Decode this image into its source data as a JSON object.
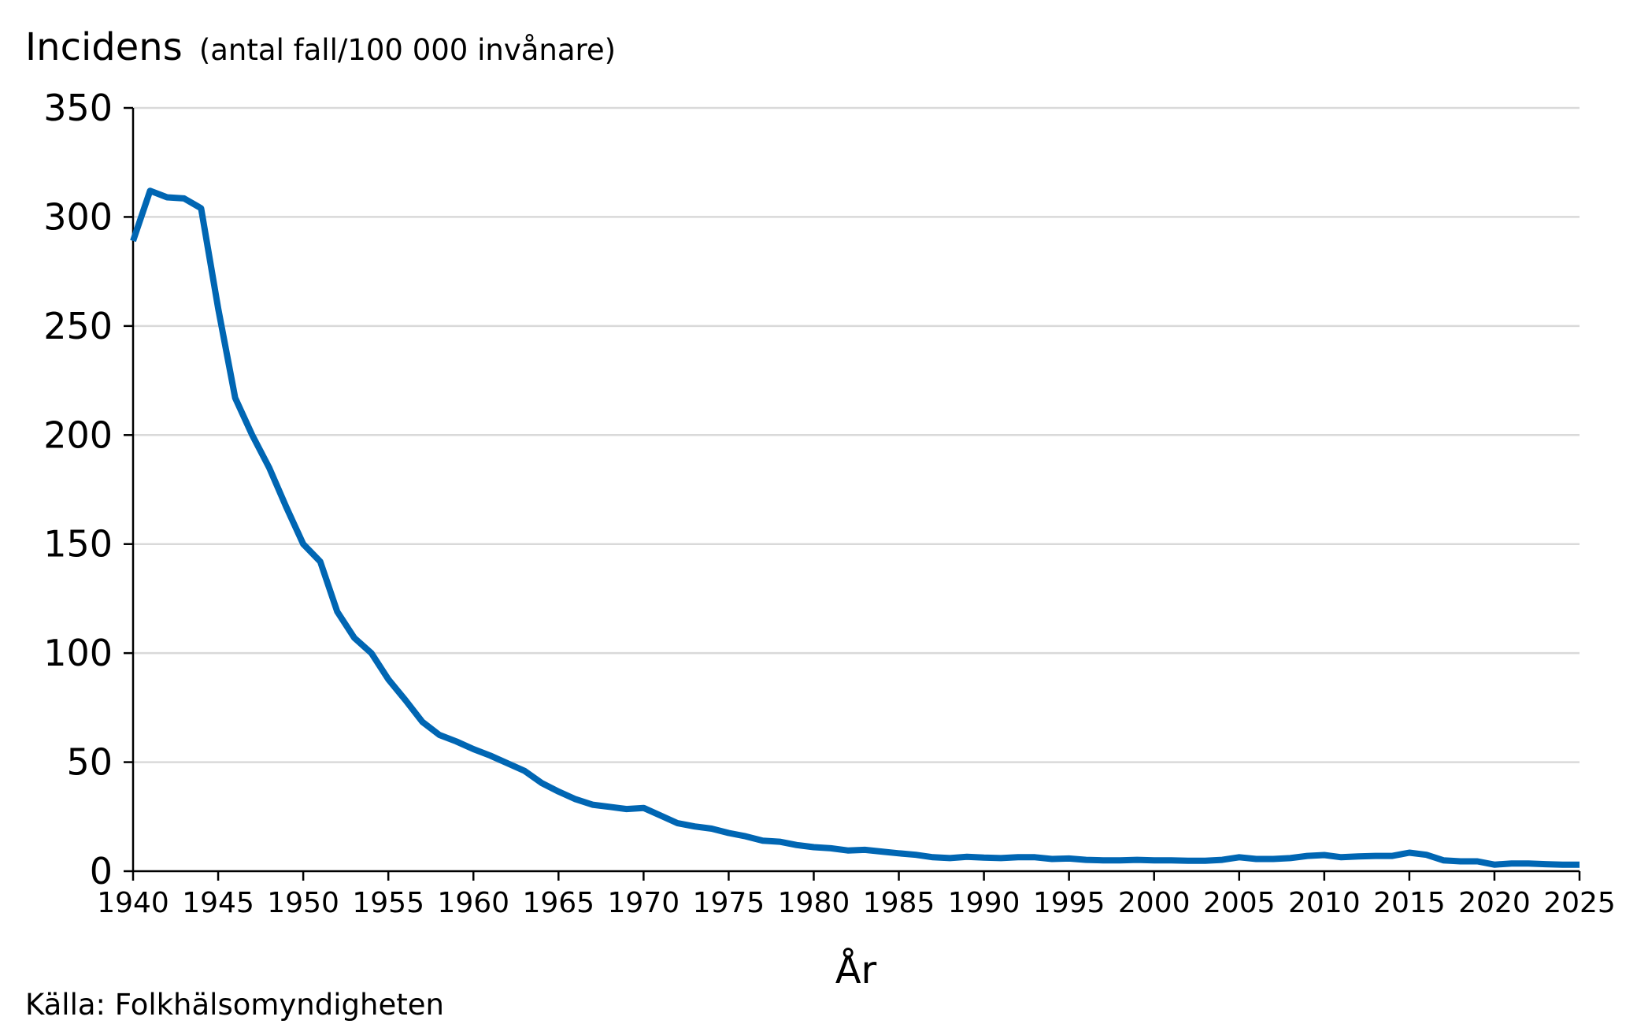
{
  "chart_data": {
    "type": "line",
    "ylabel": "Incidens",
    "ylabel_unit": "(antal fall/100 000 invånare)",
    "xlabel": "År",
    "source": "Källa: Folkhälsomyndigheten",
    "xlim": [
      1940,
      2025
    ],
    "ylim": [
      0,
      350
    ],
    "x_ticks": [
      1940,
      1945,
      1950,
      1955,
      1960,
      1965,
      1970,
      1975,
      1980,
      1985,
      1990,
      1995,
      2000,
      2005,
      2010,
      2015,
      2020,
      2025
    ],
    "y_ticks": [
      0,
      50,
      100,
      150,
      200,
      250,
      300,
      350
    ],
    "grid": "horizontal",
    "line_color": "#0066B3",
    "grid_color": "#D9D9D9",
    "series": [
      {
        "x": [
          1940,
          1941,
          1942,
          1943,
          1944,
          1945,
          1946,
          1947,
          1948,
          1949,
          1950,
          1951,
          1952,
          1953,
          1954,
          1955,
          1956,
          1957,
          1958,
          1959,
          1960,
          1961,
          1962,
          1963,
          1964,
          1965,
          1966,
          1967,
          1968,
          1969,
          1970,
          1971,
          1972,
          1973,
          1974,
          1975,
          1976,
          1977,
          1978,
          1979,
          1980,
          1981,
          1982,
          1983,
          1984,
          1985,
          1986,
          1987,
          1988,
          1989,
          1990,
          1991,
          1992,
          1993,
          1994,
          1995,
          1996,
          1997,
          1998,
          1999,
          2000,
          2001,
          2002,
          2003,
          2004,
          2005,
          2006,
          2007,
          2008,
          2009,
          2010,
          2011,
          2012,
          2013,
          2014,
          2015,
          2016,
          2017,
          2018,
          2019,
          2020,
          2021,
          2022,
          2023,
          2024,
          2025
        ],
        "values": [
          289,
          312,
          309,
          308.5,
          304,
          258,
          217,
          200,
          185,
          167,
          150,
          142,
          119,
          107,
          100,
          88,
          78.5,
          68.5,
          62.5,
          59.5,
          56,
          53,
          49.5,
          46,
          40.5,
          36.5,
          33,
          30.5,
          29.5,
          28.5,
          29,
          25.5,
          22,
          20.5,
          19.5,
          17.5,
          16,
          14,
          13.5,
          12,
          11,
          10.5,
          9.5,
          9.8,
          9,
          8.2,
          7.5,
          6.4,
          6,
          6.6,
          6.2,
          6,
          6.4,
          6.4,
          5.6,
          5.8,
          5.2,
          5,
          5,
          5.2,
          5,
          5,
          4.8,
          4.8,
          5.2,
          6.4,
          5.6,
          5.6,
          6,
          7,
          7.4,
          6.4,
          6.8,
          7,
          7,
          8.5,
          7.5,
          5,
          4.5,
          4.5,
          3,
          3.5,
          3.5,
          3.2,
          3,
          3
        ]
      }
    ]
  }
}
